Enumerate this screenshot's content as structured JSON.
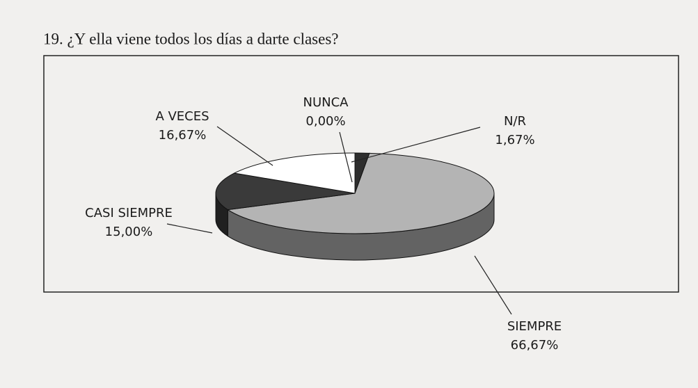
{
  "chart_data": {
    "type": "pie3d",
    "title": "19. ¿Y ella viene todos los días a darte clases?",
    "categories": [
      "NUNCA",
      "N/R",
      "SIEMPRE",
      "CASI SIEMPRE",
      "A VECES"
    ],
    "values": [
      0,
      1.67,
      66.67,
      15,
      16.67
    ],
    "value_labels": [
      "0,00%",
      "1,67%",
      "66,67%",
      "15,00%",
      "16,67%"
    ],
    "colors": [
      "#666666",
      "#2e2e2e",
      "#b4b4b4",
      "#3a3a3a",
      "#ffffff"
    ]
  }
}
